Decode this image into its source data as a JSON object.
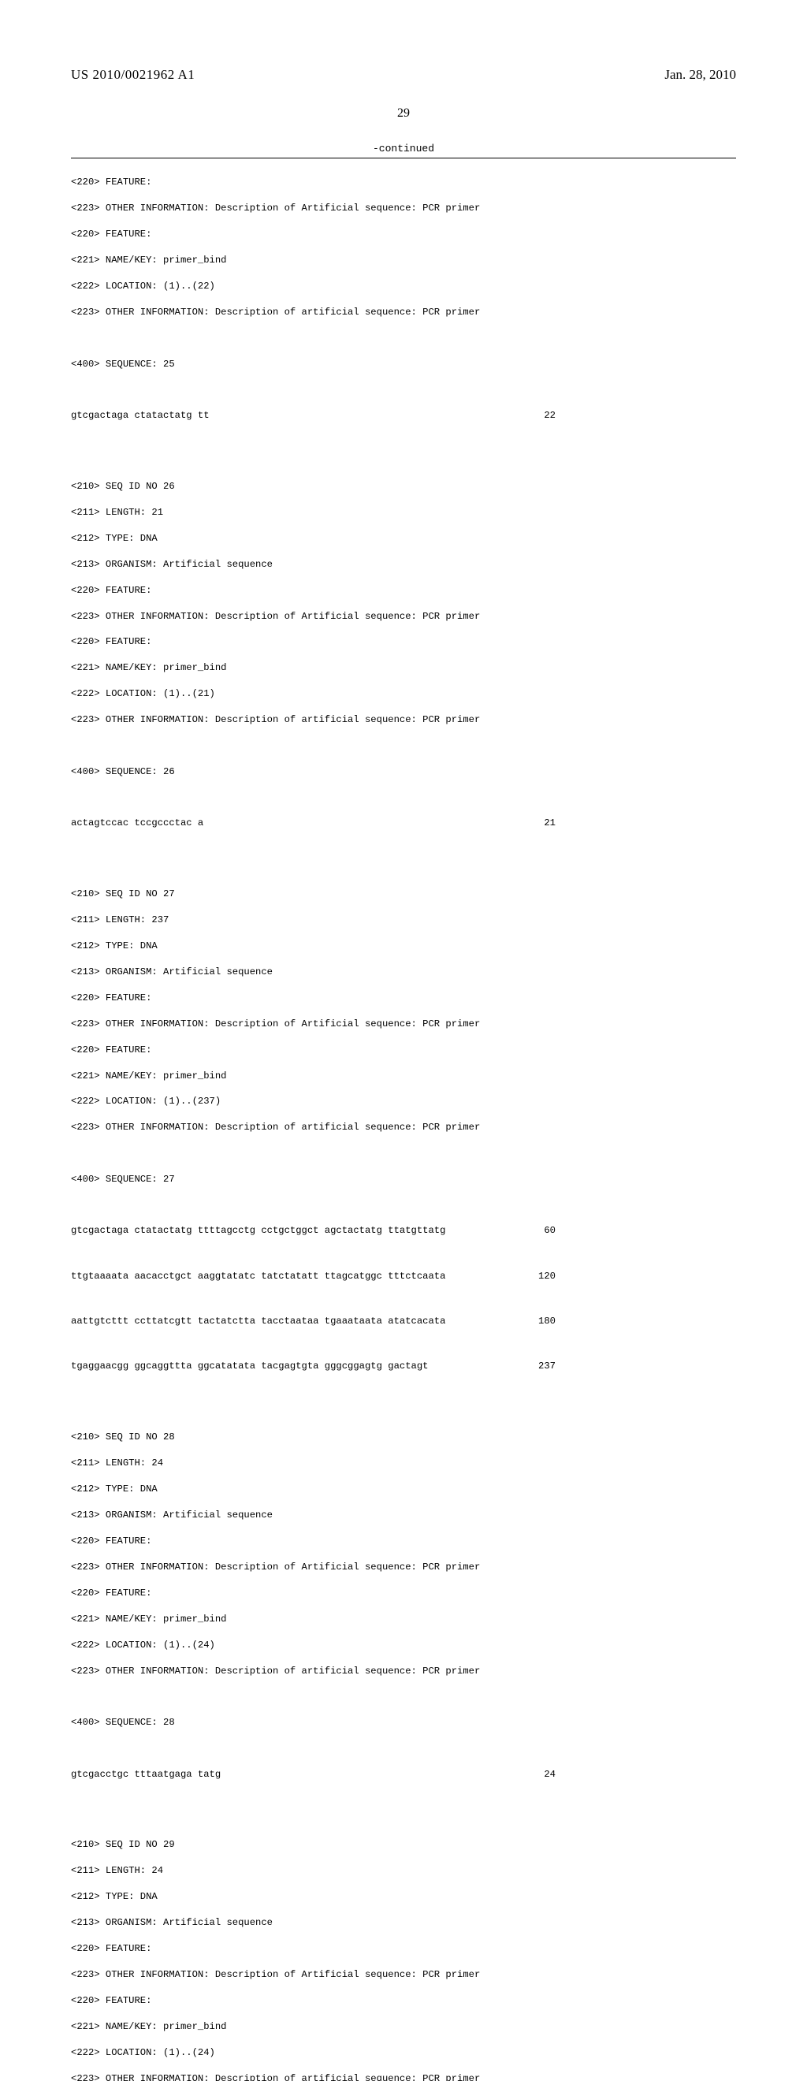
{
  "header": {
    "pub_number": "US 2010/0021962 A1",
    "pub_date": "Jan. 28, 2010"
  },
  "page_number": "29",
  "continued_label": "-continued",
  "listing": {
    "lines_a": [
      "<220> FEATURE:",
      "<223> OTHER INFORMATION: Description of Artificial sequence: PCR primer",
      "<220> FEATURE:",
      "<221> NAME/KEY: primer_bind",
      "<222> LOCATION: (1)..(22)",
      "<223> OTHER INFORMATION: Description of artificial sequence: PCR primer"
    ],
    "seq25_label": "<400> SEQUENCE: 25",
    "seq25": {
      "text": "gtcgactaga ctatactatg tt",
      "num": "22"
    },
    "lines_b": [
      "<210> SEQ ID NO 26",
      "<211> LENGTH: 21",
      "<212> TYPE: DNA",
      "<213> ORGANISM: Artificial sequence",
      "<220> FEATURE:",
      "<223> OTHER INFORMATION: Description of Artificial sequence: PCR primer",
      "<220> FEATURE:",
      "<221> NAME/KEY: primer_bind",
      "<222> LOCATION: (1)..(21)",
      "<223> OTHER INFORMATION: Description of artificial sequence: PCR primer"
    ],
    "seq26_label": "<400> SEQUENCE: 26",
    "seq26": {
      "text": "actagtccac tccgccctac a",
      "num": "21"
    },
    "lines_c": [
      "<210> SEQ ID NO 27",
      "<211> LENGTH: 237",
      "<212> TYPE: DNA",
      "<213> ORGANISM: Artificial sequence",
      "<220> FEATURE:",
      "<223> OTHER INFORMATION: Description of Artificial sequence: PCR primer",
      "<220> FEATURE:",
      "<221> NAME/KEY: primer_bind",
      "<222> LOCATION: (1)..(237)",
      "<223> OTHER INFORMATION: Description of artificial sequence: PCR primer"
    ],
    "seq27_label": "<400> SEQUENCE: 27",
    "seq27_rows": [
      {
        "text": "gtcgactaga ctatactatg ttttagcctg cctgctggct agctactatg ttatgttatg",
        "num": "60"
      },
      {
        "text": "ttgtaaaata aacacctgct aaggtatatc tatctatatt ttagcatggc tttctcaata",
        "num": "120"
      },
      {
        "text": "aattgtcttt ccttatcgtt tactatctta tacctaataa tgaaataata atatcacata",
        "num": "180"
      },
      {
        "text": "tgaggaacgg ggcaggttta ggcatatata tacgagtgta gggcggagtg gactagt",
        "num": "237"
      }
    ],
    "lines_d": [
      "<210> SEQ ID NO 28",
      "<211> LENGTH: 24",
      "<212> TYPE: DNA",
      "<213> ORGANISM: Artificial sequence",
      "<220> FEATURE:",
      "<223> OTHER INFORMATION: Description of Artificial sequence: PCR primer",
      "<220> FEATURE:",
      "<221> NAME/KEY: primer_bind",
      "<222> LOCATION: (1)..(24)",
      "<223> OTHER INFORMATION: Description of artificial sequence: PCR primer"
    ],
    "seq28_label": "<400> SEQUENCE: 28",
    "seq28": {
      "text": "gtcgacctgc tttaatgaga tatg",
      "num": "24"
    },
    "lines_e": [
      "<210> SEQ ID NO 29",
      "<211> LENGTH: 24",
      "<212> TYPE: DNA",
      "<213> ORGANISM: Artificial sequence",
      "<220> FEATURE:",
      "<223> OTHER INFORMATION: Description of Artificial sequence: PCR primer",
      "<220> FEATURE:",
      "<221> NAME/KEY: primer_bind",
      "<222> LOCATION: (1)..(24)",
      "<223> OTHER INFORMATION: Description of artificial sequence: PCR primer"
    ]
  }
}
